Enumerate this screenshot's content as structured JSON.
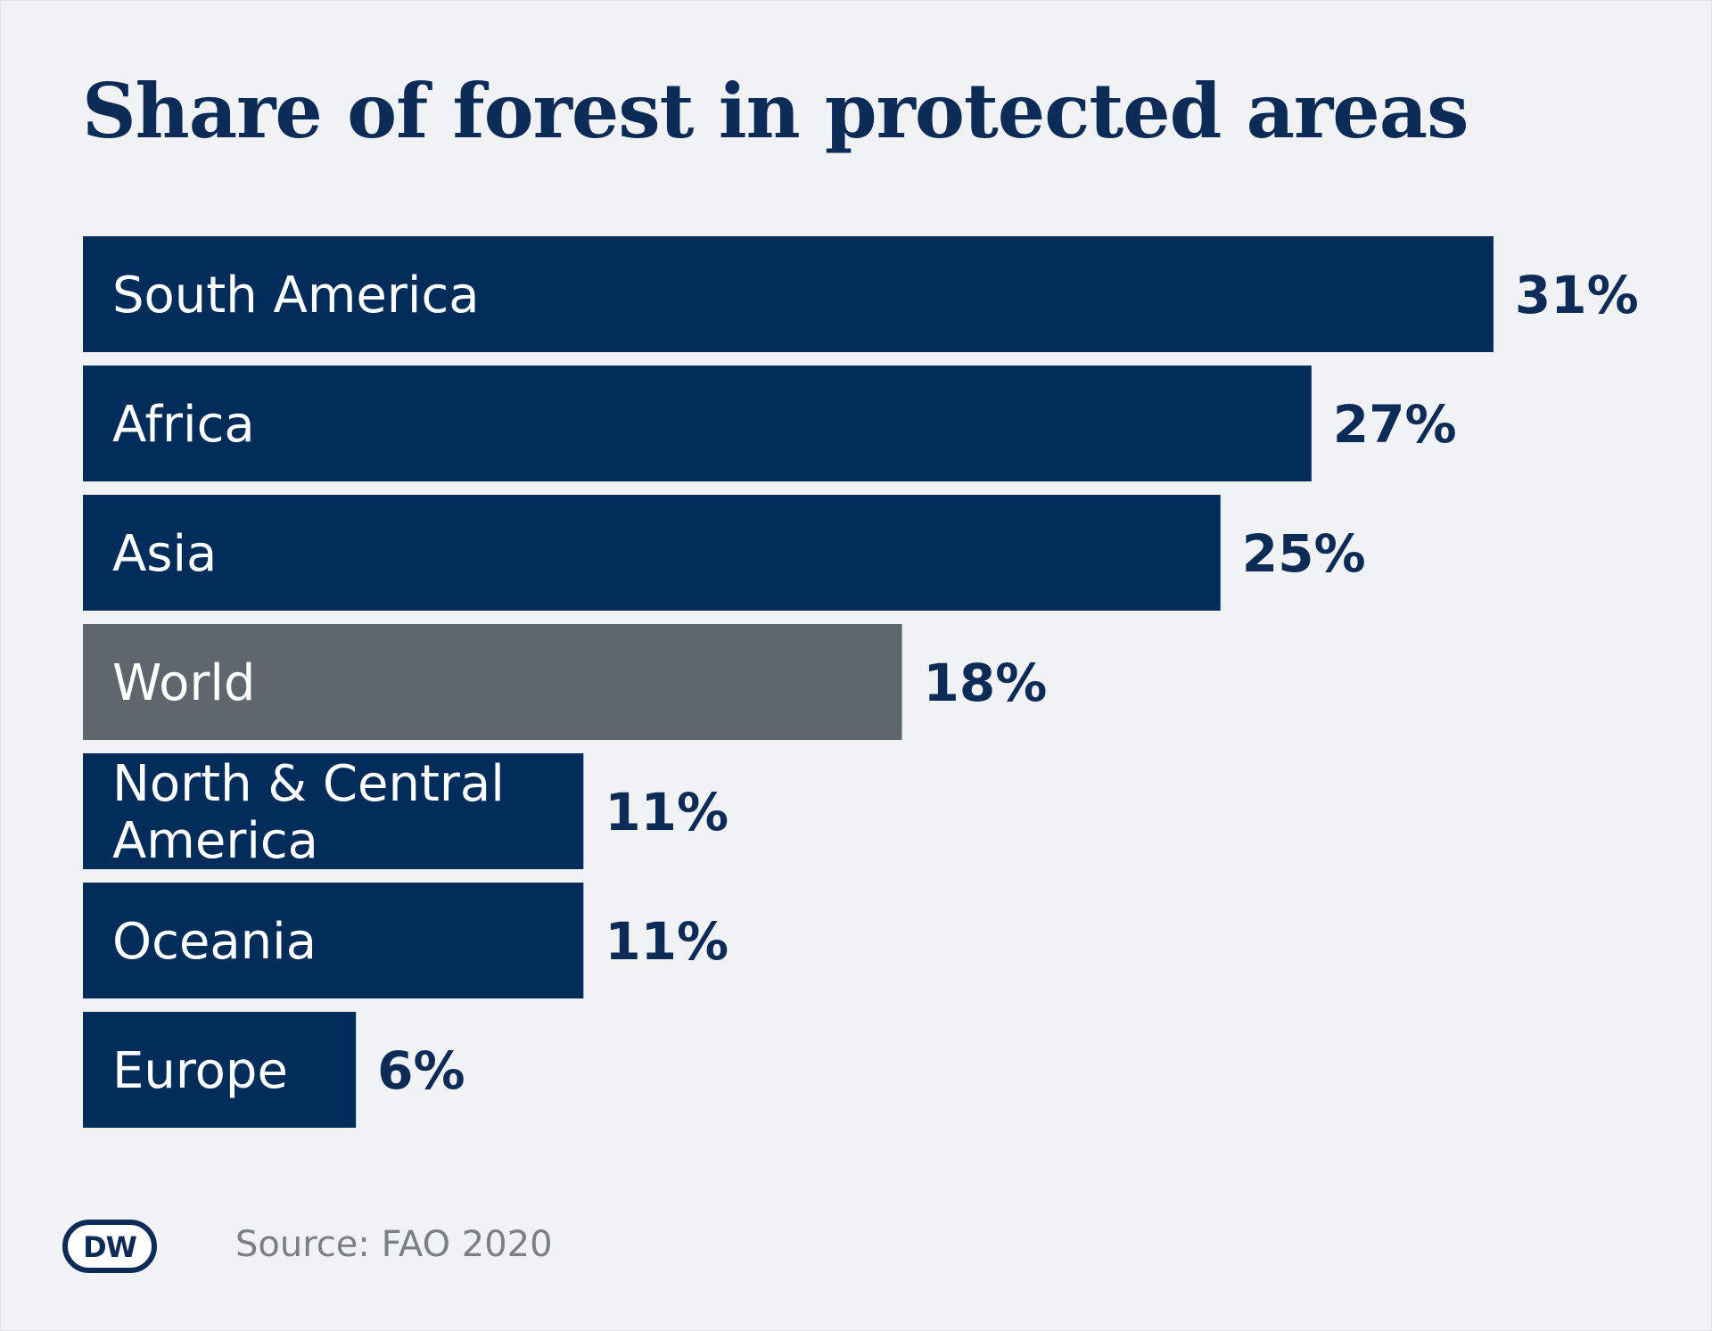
{
  "title": "Share of forest in protected areas",
  "source": "Source: FAO 2020",
  "logo": {
    "text": "DW"
  },
  "colors": {
    "background": "#f1f2f4",
    "region_bar": "#022d5a",
    "world_bar": "#5f676d",
    "value_text": "#0c2c57",
    "source_text": "#7b7f86"
  },
  "chart_data": {
    "type": "bar",
    "orientation": "horizontal",
    "title": "Share of forest in protected areas",
    "categories": [
      "South America",
      "Africa",
      "Asia",
      "World",
      "North & Central America",
      "Oceania",
      "Europe"
    ],
    "values": [
      31,
      27,
      25,
      18,
      11,
      11,
      6
    ],
    "value_labels": [
      "31%",
      "27%",
      "25%",
      "18%",
      "11%",
      "11%",
      "6%"
    ],
    "unit": "%",
    "highlighted_category": "World",
    "grid": false,
    "legend": "none"
  }
}
